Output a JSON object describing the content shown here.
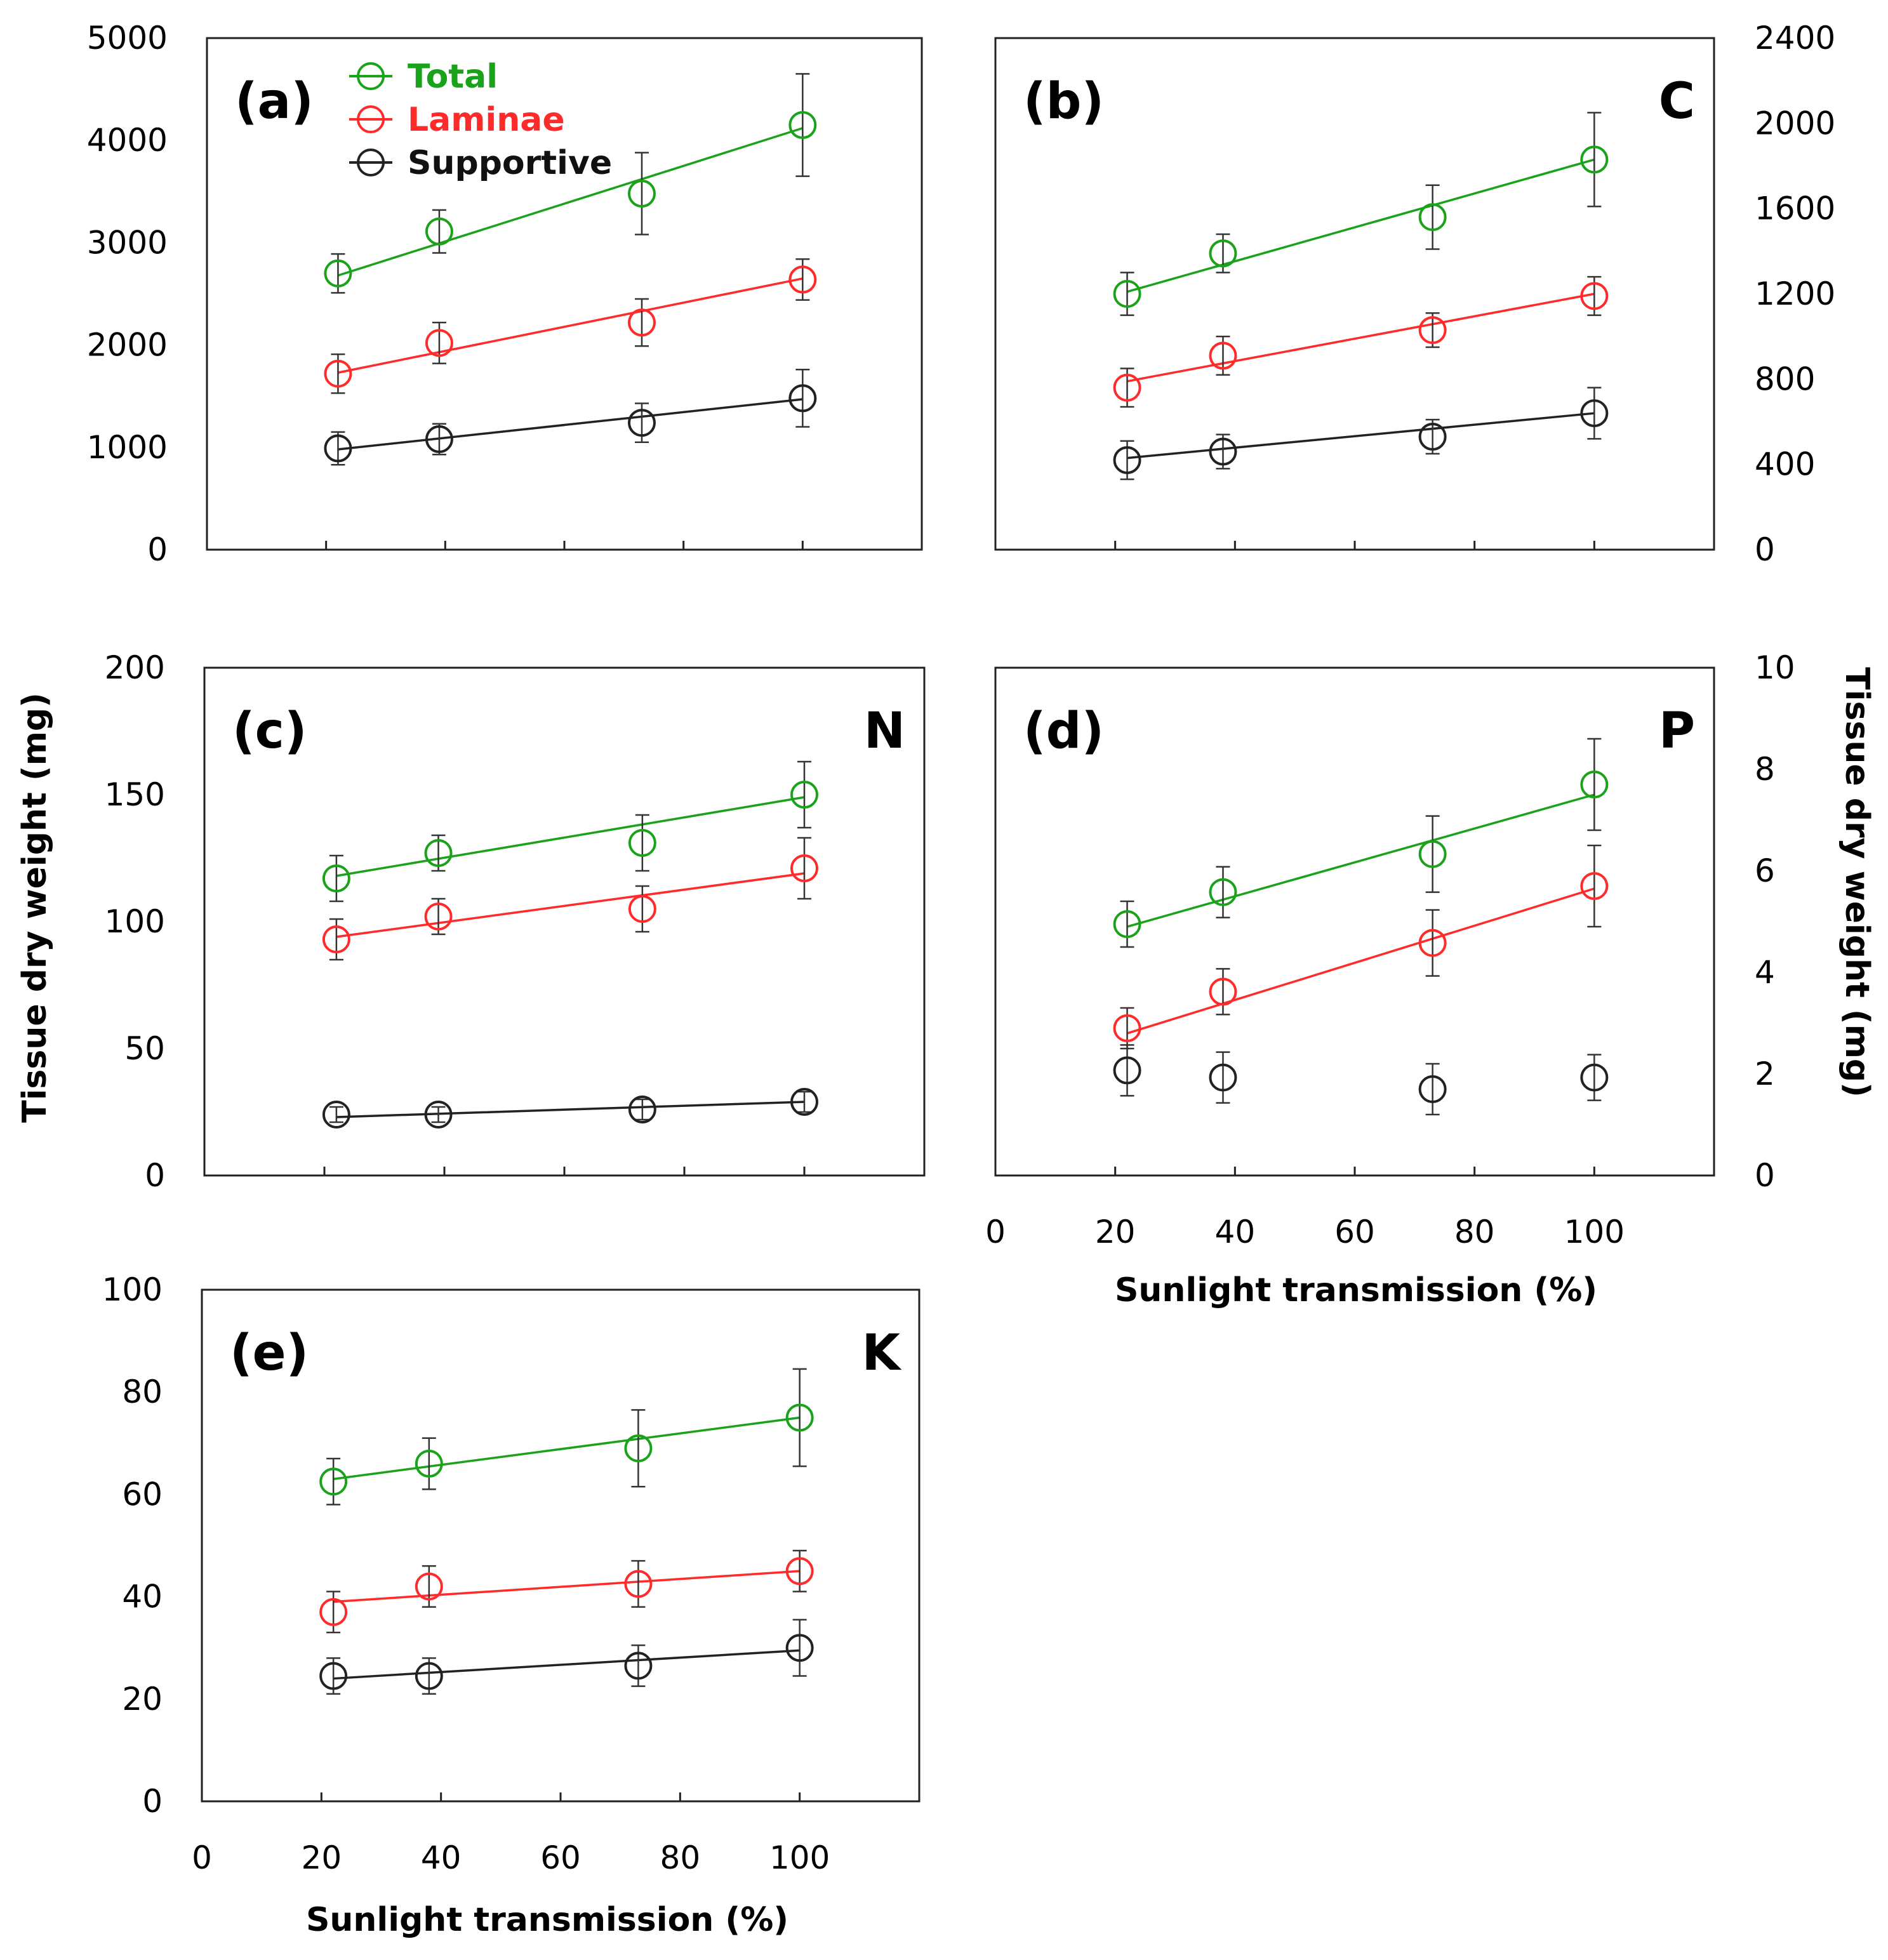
{
  "page": {
    "background": "#ffffff"
  },
  "series_styles": [
    {
      "name": "Total",
      "color": "#1aa31a"
    },
    {
      "name": "Laminae",
      "color": "#ff2a2a"
    },
    {
      "name": "Supportive",
      "color": "#222222"
    }
  ],
  "axis_titles": {
    "ylabel_left": "Tissue dry weight (mg)",
    "ylabel_right": "Tissue dry weight (mg)",
    "xlabel_d": "Sunlight transmission (%)",
    "xlabel_e": "Sunlight transmission (%)"
  },
  "chart_data": [
    {
      "id": "a",
      "type": "scatter",
      "panel_label": "(a)",
      "element": "",
      "xlim": [
        0,
        120
      ],
      "ylim": [
        0,
        5000
      ],
      "x_ticks": [
        0,
        20,
        40,
        60,
        80,
        100
      ],
      "y_ticks": [
        "0",
        "1000",
        "2000",
        "3000",
        "4000",
        "5000"
      ],
      "x_tick_labels": [],
      "y_axis_side": "left",
      "x": [
        22,
        39,
        73,
        100
      ],
      "legend": [
        "Total",
        "Laminae",
        "Supportive"
      ],
      "series": [
        {
          "name": "Total",
          "values": [
            2700,
            3110,
            3480,
            4150
          ],
          "errors": [
            190,
            210,
            400,
            500
          ],
          "trend": [
            2680,
            4120
          ]
        },
        {
          "name": "Laminae",
          "values": [
            1720,
            2020,
            2220,
            2640
          ],
          "errors": [
            190,
            200,
            230,
            200
          ],
          "trend": [
            1730,
            2650
          ]
        },
        {
          "name": "Supportive",
          "values": [
            990,
            1080,
            1240,
            1480
          ],
          "errors": [
            160,
            150,
            190,
            280
          ],
          "trend": [
            980,
            1470
          ]
        }
      ]
    },
    {
      "id": "b",
      "type": "scatter",
      "panel_label": "(b)",
      "element": "C",
      "xlim": [
        0,
        120
      ],
      "ylim": [
        0,
        2400
      ],
      "x_ticks": [
        0,
        20,
        40,
        60,
        80,
        100
      ],
      "y_ticks": [
        "0",
        "400",
        "800",
        "1200",
        "1600",
        "2000",
        "2400"
      ],
      "x_tick_labels": [],
      "y_axis_side": "right",
      "x": [
        22,
        38,
        73,
        100
      ],
      "legend": [],
      "series": [
        {
          "name": "Total",
          "values": [
            1200,
            1390,
            1560,
            1830
          ],
          "errors": [
            100,
            90,
            150,
            220
          ],
          "trend": [
            1210,
            1830
          ]
        },
        {
          "name": "Laminae",
          "values": [
            760,
            910,
            1030,
            1190
          ],
          "errors": [
            90,
            90,
            80,
            90
          ],
          "trend": [
            790,
            1200
          ]
        },
        {
          "name": "Supportive",
          "values": [
            420,
            460,
            530,
            640
          ],
          "errors": [
            90,
            80,
            80,
            120
          ],
          "trend": [
            430,
            640
          ]
        }
      ]
    },
    {
      "id": "c",
      "type": "scatter",
      "panel_label": "(c)",
      "element": "N",
      "xlim": [
        0,
        120
      ],
      "ylim": [
        0,
        200
      ],
      "x_ticks": [
        0,
        20,
        40,
        60,
        80,
        100
      ],
      "y_ticks": [
        "0",
        "50",
        "100",
        "150",
        "200"
      ],
      "x_tick_labels": [],
      "y_axis_side": "left",
      "x": [
        22,
        39,
        73,
        100
      ],
      "legend": [],
      "series": [
        {
          "name": "Total",
          "values": [
            117,
            127,
            131,
            150
          ],
          "errors": [
            9,
            7,
            11,
            13
          ],
          "trend": [
            118,
            149
          ]
        },
        {
          "name": "Laminae",
          "values": [
            93,
            102,
            105,
            121
          ],
          "errors": [
            8,
            7,
            9,
            12
          ],
          "trend": [
            94,
            119
          ]
        },
        {
          "name": "Supportive",
          "values": [
            24,
            24,
            26,
            29
          ],
          "errors": [
            3,
            3,
            4,
            4
          ],
          "trend": [
            23,
            29
          ]
        }
      ]
    },
    {
      "id": "d",
      "type": "scatter",
      "panel_label": "(d)",
      "element": "P",
      "xlim": [
        0,
        120
      ],
      "ylim": [
        0,
        10
      ],
      "x_ticks": [
        0,
        20,
        40,
        60,
        80,
        100
      ],
      "y_ticks": [
        "0",
        "2",
        "4",
        "6",
        "8",
        "10"
      ],
      "x_tick_labels": [
        "0",
        "20",
        "40",
        "60",
        "80",
        "100"
      ],
      "y_axis_side": "right",
      "x": [
        22,
        38,
        73,
        100
      ],
      "legend": [],
      "series": [
        {
          "name": "Total",
          "values": [
            4.95,
            5.58,
            6.33,
            7.7
          ],
          "errors": [
            0.45,
            0.5,
            0.75,
            0.9
          ],
          "trend": [
            4.9,
            7.5
          ]
        },
        {
          "name": "Laminae",
          "values": [
            2.9,
            3.62,
            4.58,
            5.7
          ],
          "errors": [
            0.4,
            0.45,
            0.65,
            0.8
          ],
          "trend": [
            2.8,
            5.65
          ]
        },
        {
          "name": "Supportive",
          "values": [
            2.07,
            1.93,
            1.7,
            1.93
          ],
          "errors": [
            0.5,
            0.5,
            0.5,
            0.45
          ],
          "trend": null
        }
      ]
    },
    {
      "id": "e",
      "type": "scatter",
      "panel_label": "(e)",
      "element": "K",
      "xlim": [
        0,
        120
      ],
      "ylim": [
        0,
        100
      ],
      "x_ticks": [
        0,
        20,
        40,
        60,
        80,
        100
      ],
      "y_ticks": [
        "0",
        "20",
        "40",
        "60",
        "80",
        "100"
      ],
      "x_tick_labels": [
        "0",
        "20",
        "40",
        "60",
        "80",
        "100"
      ],
      "y_axis_side": "left",
      "x": [
        22,
        38,
        73,
        100
      ],
      "legend": [],
      "series": [
        {
          "name": "Total",
          "values": [
            62.5,
            66,
            69,
            75
          ],
          "errors": [
            4.5,
            5,
            7.5,
            9.5
          ],
          "trend": [
            63,
            75
          ]
        },
        {
          "name": "Laminae",
          "values": [
            37,
            42,
            42.5,
            45
          ],
          "errors": [
            4,
            4,
            4.5,
            4
          ],
          "trend": [
            39,
            45
          ]
        },
        {
          "name": "Supportive",
          "values": [
            24.5,
            24.5,
            26.5,
            30
          ],
          "errors": [
            3.5,
            3.5,
            4,
            5.5
          ],
          "trend": [
            24,
            29.5
          ]
        }
      ]
    }
  ]
}
